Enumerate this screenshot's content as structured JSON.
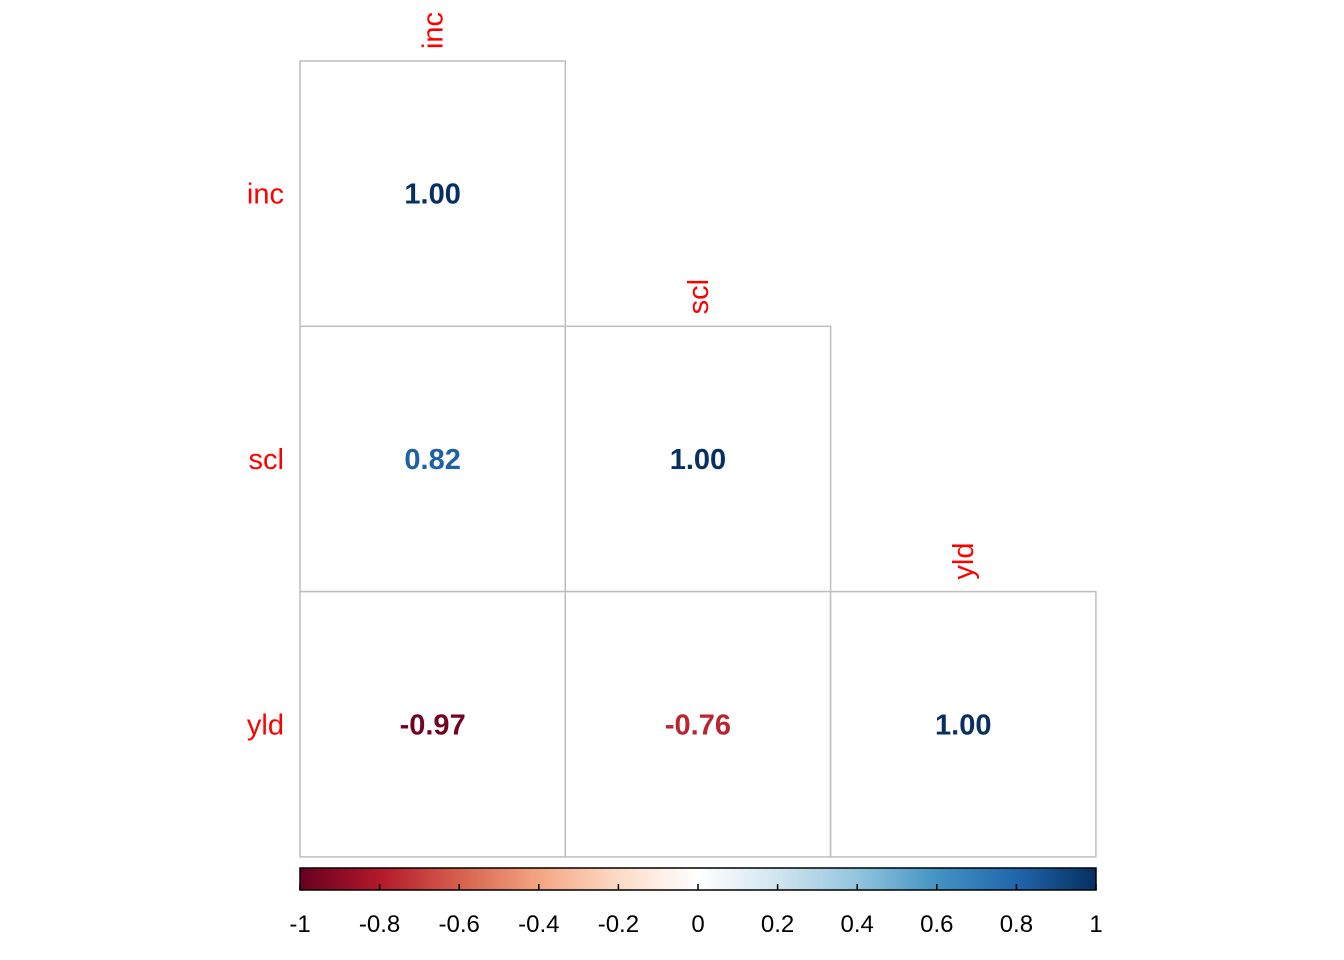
{
  "chart_data": {
    "type": "heatmap",
    "title": "",
    "variables": [
      "inc",
      "scl",
      "yld"
    ],
    "cells": [
      {
        "row": "inc",
        "col": "inc",
        "value": 1.0,
        "label": "1.00"
      },
      {
        "row": "scl",
        "col": "inc",
        "value": 0.82,
        "label": "0.82"
      },
      {
        "row": "scl",
        "col": "scl",
        "value": 1.0,
        "label": "1.00"
      },
      {
        "row": "yld",
        "col": "inc",
        "value": -0.97,
        "label": "-0.97"
      },
      {
        "row": "yld",
        "col": "scl",
        "value": -0.76,
        "label": "-0.76"
      },
      {
        "row": "yld",
        "col": "yld",
        "value": 1.0,
        "label": "1.00"
      }
    ],
    "colorbar": {
      "range": [
        -1,
        1
      ],
      "tick_labels": [
        "-1",
        "-0.8",
        "-0.6",
        "-0.4",
        "-0.2",
        "0",
        "0.2",
        "0.4",
        "0.6",
        "0.8",
        "1"
      ],
      "tick_values": [
        -1,
        -0.8,
        -0.6,
        -0.4,
        -0.2,
        0,
        0.2,
        0.4,
        0.6,
        0.8,
        1
      ],
      "placement": "bottom"
    },
    "colors": {
      "variable_label": "#ff0000",
      "cell_border": "#bebebe",
      "scale": [
        "#67001f",
        "#b2182b",
        "#d6604d",
        "#f4a582",
        "#fddbc7",
        "#ffffff",
        "#d1e5f0",
        "#92c5de",
        "#4393c3",
        "#2166ac",
        "#053061"
      ]
    }
  }
}
